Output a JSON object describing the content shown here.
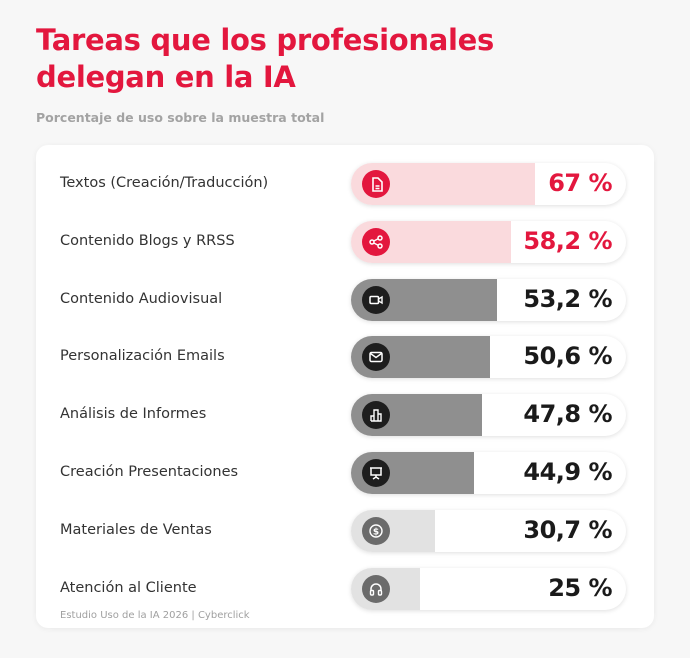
{
  "chart_data": {
    "type": "bar",
    "orientation": "horizontal",
    "title": "Tareas que los profesionales delegan en la IA",
    "subtitle": "Porcentaje de uso sobre la muestra total",
    "xlim": [
      0,
      100
    ],
    "unit": "%",
    "categories": [
      "Textos (Creación/Traducción)",
      "Contenido Blogs y RRSS",
      "Contenido Audiovisual",
      "Personalización Emails",
      "Análisis de Informes",
      "Creación Presentaciones",
      "Materiales de Ventas",
      "Atención al Cliente"
    ],
    "values": [
      67,
      58.2,
      53.2,
      50.6,
      47.8,
      44.9,
      30.7,
      25
    ],
    "value_labels": [
      "67 %",
      "58,2 %",
      "53,2 %",
      "50,6 %",
      "47,8 %",
      "44,9 %",
      "30,7 %",
      "25 %"
    ],
    "icons": [
      "document-icon",
      "share-icon",
      "video-camera-icon",
      "envelope-icon",
      "bar-chart-icon",
      "presentation-icon",
      "dollar-coin-icon",
      "headphones-icon"
    ],
    "tiers": [
      "red",
      "red",
      "dark",
      "dark",
      "dark",
      "dark",
      "light",
      "light"
    ],
    "footer": "Estudio Uso de la IA 2026 | Cyberclick"
  },
  "colors": {
    "red": {
      "fill": "#fadadd",
      "icon": "#e3173e",
      "text": "#e3173e"
    },
    "dark": {
      "fill": "#8f8f8f",
      "icon": "#1e1e1e",
      "text": "#1a1a1a"
    },
    "light": {
      "fill": "#e2e2e2",
      "icon": "#6b6b6b",
      "text": "#1a1a1a"
    }
  }
}
